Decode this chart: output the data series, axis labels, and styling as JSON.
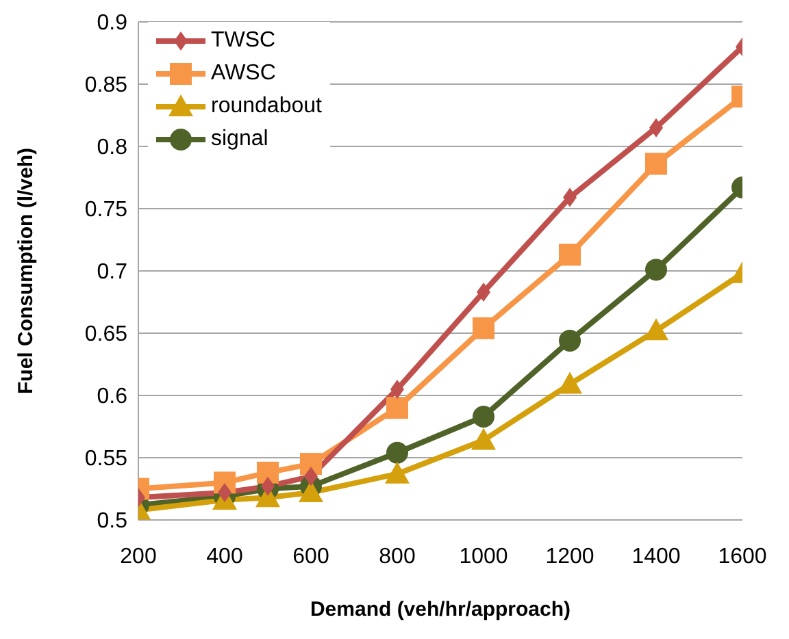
{
  "chart_data": {
    "type": "line",
    "xlabel": "Demand (veh/hr/approach)",
    "ylabel": "Fuel Consumption (l/veh)",
    "x": [
      200,
      400,
      500,
      600,
      800,
      1000,
      1200,
      1400,
      1600
    ],
    "series": [
      {
        "name": "TWSC",
        "color": "#c0504d",
        "marker": "diamond",
        "values": [
          0.518,
          0.522,
          0.527,
          0.535,
          0.605,
          0.683,
          0.759,
          0.815,
          0.88
        ]
      },
      {
        "name": "AWSC",
        "color": "#f79646",
        "marker": "square",
        "values": [
          0.525,
          0.53,
          0.538,
          0.545,
          0.59,
          0.654,
          0.713,
          0.786,
          0.84
        ]
      },
      {
        "name": "roundabout",
        "color": "#d4a00c",
        "marker": "triangle",
        "values": [
          0.508,
          0.516,
          0.518,
          0.522,
          0.537,
          0.564,
          0.609,
          0.652,
          0.698
        ]
      },
      {
        "name": "signal",
        "color": "#4f6228",
        "marker": "circle",
        "values": [
          0.512,
          0.519,
          0.525,
          0.527,
          0.554,
          0.583,
          0.644,
          0.701,
          0.767
        ]
      }
    ],
    "xlim": [
      200,
      1600
    ],
    "xticks": [
      200,
      400,
      600,
      800,
      1000,
      1200,
      1400,
      1600
    ],
    "ylim": [
      0.5,
      0.9
    ],
    "yticks": [
      0.5,
      0.55,
      0.6,
      0.65,
      0.7,
      0.75,
      0.8,
      0.85,
      0.9
    ],
    "grid": "y",
    "legend": "top left",
    "line_style": "solid"
  }
}
